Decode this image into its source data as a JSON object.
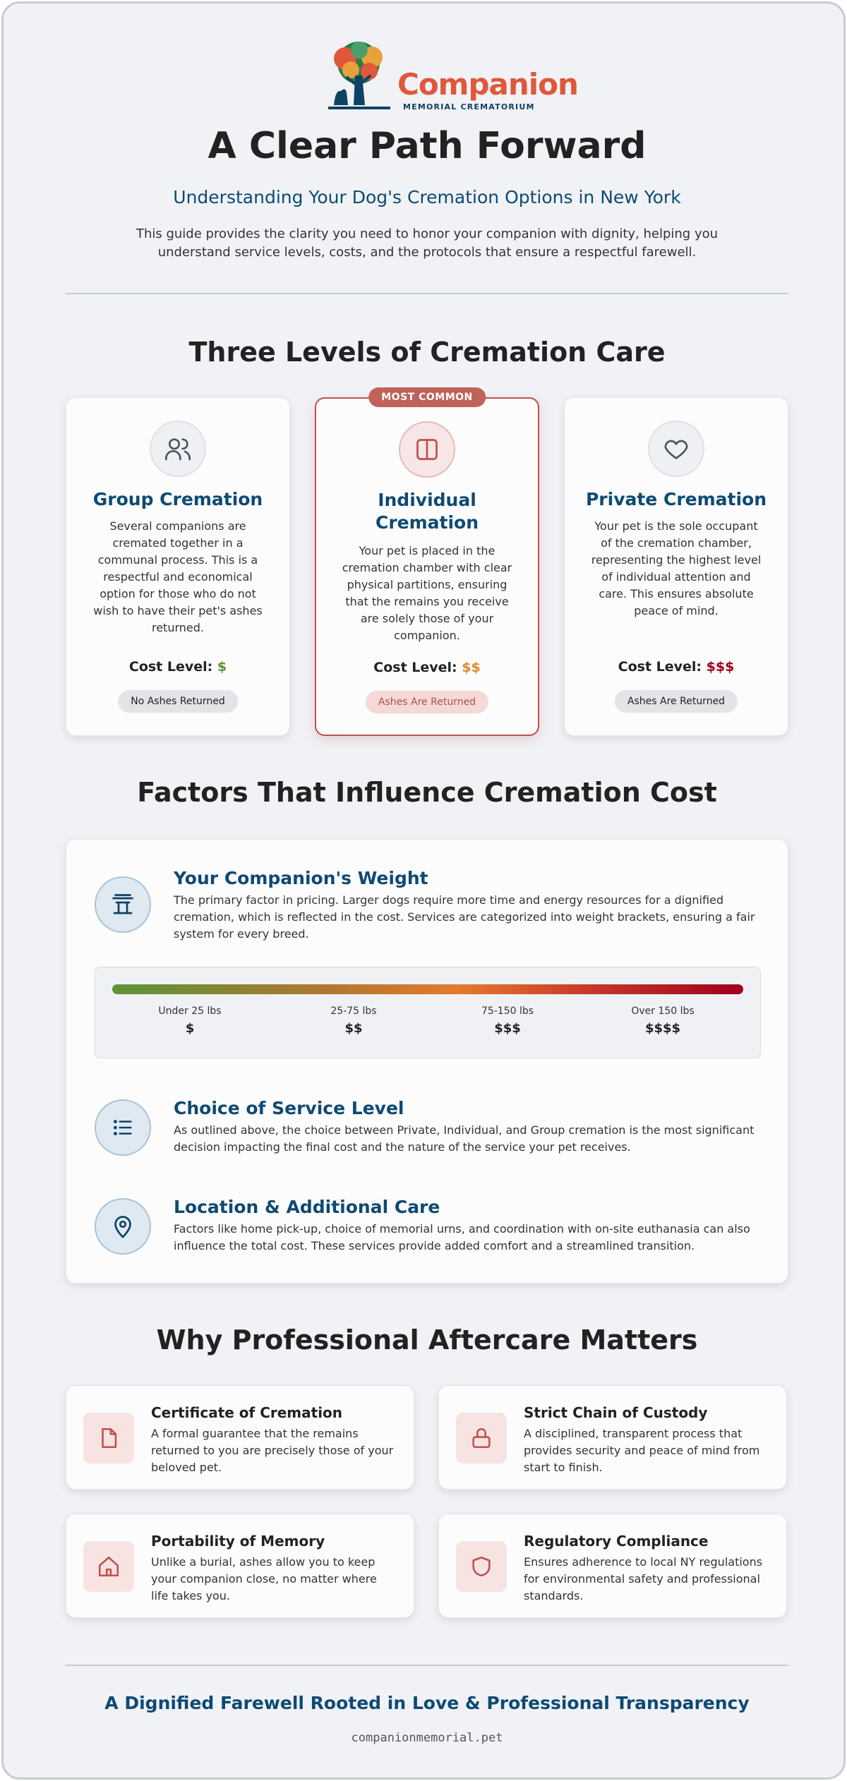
{
  "header": {
    "logo_word": "Companion",
    "logo_sub": "MEMORIAL CREMATORIUM",
    "title": "A Clear Path Forward",
    "subtitle": "Understanding Your Dog's Cremation Options in New York",
    "intro": "This guide provides the clarity you need to honor your companion with dignity, helping you understand service levels, costs, and the protocols that ensure a respectful farewell."
  },
  "levels": {
    "heading": "Three Levels of Cremation Care",
    "cost_label": "Cost Level:",
    "tiers": [
      {
        "name": "Group Cremation",
        "icon": "users-icon",
        "description": "Several companions are cremated together in a communal process. This is a respectful and economical option for those who do not wish to have their pet's ashes returned.",
        "cost": "$",
        "cost_color": "#5a9436",
        "pill": "No Ashes Returned"
      },
      {
        "name": "Individual Cremation",
        "badge": "MOST COMMON",
        "icon": "partition-icon",
        "description": "Your pet is placed in the cremation chamber with clear physical partitions, ensuring that the remains you receive are solely those of your companion.",
        "cost": "$$",
        "cost_color": "#e08a2e",
        "pill": "Ashes Are Returned"
      },
      {
        "name": "Private Cremation",
        "icon": "heart-icon",
        "description": "Your pet is the sole occupant of the cremation chamber, representing the highest level of individual attention and care. This ensures absolute peace of mind.",
        "cost": "$$$",
        "cost_color": "#a0001c",
        "pill": "Ashes Are Returned"
      }
    ]
  },
  "factors": {
    "heading": "Factors That Influence Cremation Cost",
    "weight": {
      "title": "Your Companion's Weight",
      "icon": "scale-icon",
      "text": "The primary factor in pricing. Larger dogs require more time and energy resources for a dignified cremation, which is reflected in the cost. Services are categorized into weight brackets, ensuring a fair system for every breed."
    },
    "brackets": [
      {
        "weight": "Under 25 lbs",
        "cost": "$"
      },
      {
        "weight": "25-75 lbs",
        "cost": "$$"
      },
      {
        "weight": "75-150 lbs",
        "cost": "$$$"
      },
      {
        "weight": "Over 150 lbs",
        "cost": "$$$$"
      }
    ],
    "service": {
      "title": "Choice of Service Level",
      "icon": "list-icon",
      "text": "As outlined above, the choice between Private, Individual, and Group cremation is the most significant decision impacting the final cost and the nature of the service your pet receives."
    },
    "location": {
      "title": "Location & Additional Care",
      "icon": "map-pin-icon",
      "text": "Factors like home pick-up, choice of memorial urns, and coordination with on-site euthanasia can also influence the total cost. These services provide added comfort and a streamlined transition."
    }
  },
  "why": {
    "heading": "Why Professional Aftercare Matters",
    "items": [
      {
        "title": "Certificate of Cremation",
        "icon": "document-icon",
        "text": "A formal guarantee that the remains returned to you are precisely those of your beloved pet."
      },
      {
        "title": "Strict Chain of Custody",
        "icon": "lock-icon",
        "text": "A disciplined, transparent process that provides security and peace of mind from start to finish."
      },
      {
        "title": "Portability of Memory",
        "icon": "home-icon",
        "text": "Unlike a burial, ashes allow you to keep your companion close, no matter where life takes you."
      },
      {
        "title": "Regulatory Compliance",
        "icon": "shield-icon",
        "text": "Ensures adherence to local NY regulations for environmental safety and professional standards."
      }
    ]
  },
  "footer": {
    "tagline": "A Dignified Farewell Rooted in Love & Professional Transparency",
    "url": "companionmemorial.pet"
  }
}
